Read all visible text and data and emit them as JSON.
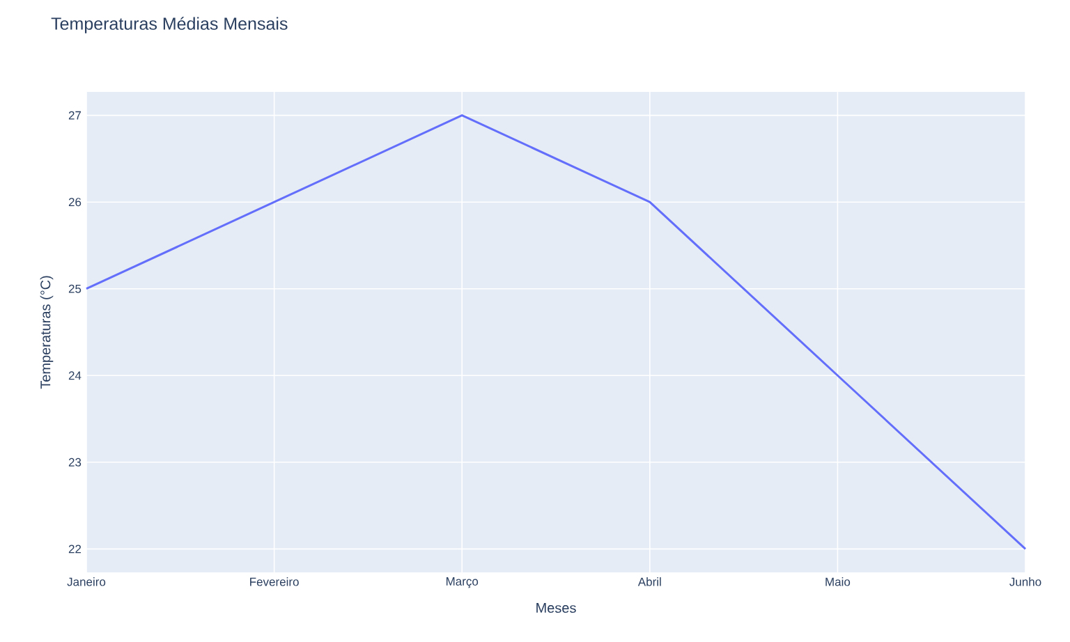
{
  "chart_data": {
    "type": "line",
    "title": "Temperaturas Médias Mensais",
    "xlabel": "Meses",
    "ylabel": "Temperaturas (°C)",
    "categories": [
      "Janeiro",
      "Fevereiro",
      "Março",
      "Abril",
      "Maio",
      "Junho"
    ],
    "series": [
      {
        "color": "#636efa",
        "values": [
          25,
          26,
          27,
          26,
          24,
          22
        ]
      }
    ],
    "ylim": [
      21.73,
      27.27
    ],
    "yticks": [
      22,
      23,
      24,
      25,
      26,
      27
    ],
    "grid": true
  }
}
